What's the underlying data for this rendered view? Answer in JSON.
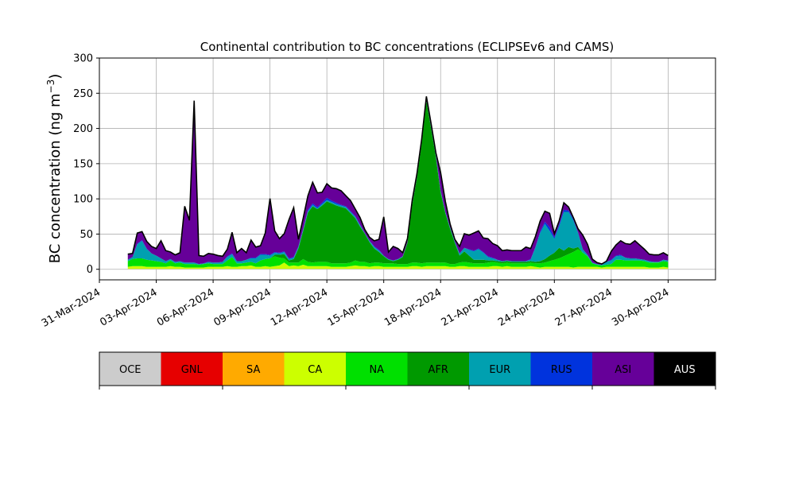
{
  "chart_data": {
    "type": "area",
    "stacked": true,
    "title": "Continental contribution to BC concentrations (ECLIPSEv6 and CAMS)",
    "ylabel_main": "BC concentration (ng m",
    "ylabel_exp": "−3",
    "ylabel_close": ")",
    "ylim": [
      -15,
      300
    ],
    "yticks": [
      0,
      50,
      100,
      150,
      200,
      250,
      300
    ],
    "x_is_date": true,
    "xlim": [
      "2024-03-31T00:00",
      "2024-05-02T12:00"
    ],
    "xticks": [
      "31-Mar-2024",
      "03-Apr-2024",
      "06-Apr-2024",
      "09-Apr-2024",
      "12-Apr-2024",
      "15-Apr-2024",
      "18-Apr-2024",
      "21-Apr-2024",
      "24-Apr-2024",
      "27-Apr-2024",
      "30-Apr-2024"
    ],
    "grid": true,
    "legend_position": "colorbar below",
    "series": [
      {
        "name": "OCE",
        "color": "#cccccc",
        "values": [
          0.5,
          0.5,
          0.5,
          0.5,
          0.5,
          0.5,
          0.5,
          0.5,
          0.5,
          0.5,
          0.5,
          0.5,
          0.5,
          0.5,
          0.5,
          0.5,
          0.5,
          0.5,
          0.5,
          0.5,
          0.5,
          0.5,
          0.5,
          0.5,
          0.5,
          0.5,
          0.5,
          0.5,
          0.5,
          0.5,
          0.5,
          0.5,
          0.5,
          0.5,
          0.5,
          0.5,
          0.5,
          0.5,
          0.5,
          0.5,
          0.5,
          0.5,
          0.5,
          0.5,
          0.5,
          0.5,
          0.5,
          0.5,
          0.5,
          0.5,
          0.5,
          0.5,
          0.5,
          0.5,
          0.5,
          0.5,
          0.5,
          0.5,
          0.5,
          0.5,
          0.5,
          0.5,
          0.5,
          0.5,
          0.5,
          0.5,
          0.5,
          0.5,
          0.5,
          0.5,
          0.5,
          0.5,
          0.5,
          0.5,
          0.5,
          0.5,
          0.5,
          0.5,
          0.5,
          0.5,
          0.5,
          0.5,
          0.5,
          0.5,
          0.5,
          0.5,
          0.5,
          0.5,
          0.5,
          0.5,
          0.5,
          0.5,
          0.5,
          0.5,
          0.5,
          0.5,
          0.5,
          0.5,
          0.5,
          0.5,
          0.5,
          0.5,
          0.5,
          0.5,
          0.5,
          0.5,
          0.5,
          0.5,
          0.5,
          0.5,
          0.5,
          0.5,
          0.5,
          0.5,
          0.5
        ]
      },
      {
        "name": "GNL",
        "color": "#e60000",
        "values": [
          0,
          0,
          0,
          0,
          0,
          0,
          0,
          0,
          0,
          0,
          0,
          0,
          0,
          0,
          0,
          0,
          0,
          0,
          0,
          0,
          0,
          0,
          0,
          0,
          0,
          0,
          0,
          0,
          0,
          0,
          0,
          0,
          0,
          0,
          0,
          0,
          0,
          0,
          0,
          0,
          0,
          0,
          0,
          0,
          0,
          0,
          0,
          0,
          0,
          0,
          0,
          0,
          0,
          0,
          0,
          0,
          0,
          0,
          0,
          0,
          0,
          0,
          0,
          0,
          0,
          0,
          0,
          0,
          0,
          0,
          0,
          0,
          0,
          0,
          0,
          0,
          0,
          0,
          0,
          0,
          0,
          0,
          0,
          0,
          0,
          0,
          0,
          0,
          0,
          0,
          0,
          0,
          0,
          0,
          0,
          0,
          0,
          0,
          0,
          0,
          0,
          0,
          0,
          0,
          0,
          0,
          0,
          0,
          0,
          0,
          0,
          0,
          0,
          0,
          0
        ]
      },
      {
        "name": "SA",
        "color": "#ffaa00",
        "values": [
          0,
          0,
          0,
          0,
          0,
          0,
          0,
          0,
          0,
          0,
          0,
          0,
          0,
          0,
          0,
          0,
          0,
          0,
          0,
          0,
          0,
          0,
          0,
          0,
          0,
          0,
          0,
          0,
          0,
          0,
          0,
          0,
          0,
          0,
          0,
          0,
          0,
          0,
          0,
          0,
          0,
          0,
          0,
          0,
          0,
          0,
          0,
          0,
          0,
          0,
          0,
          0,
          0,
          0,
          0,
          0,
          0,
          0,
          0,
          0,
          0,
          0,
          0,
          0,
          0,
          0,
          0,
          0,
          0,
          0,
          0,
          0,
          0,
          0,
          0,
          0,
          0,
          0,
          0,
          0,
          0,
          0,
          0,
          0,
          0,
          0,
          0,
          0,
          0,
          0,
          0,
          0,
          0,
          0,
          0,
          0,
          0,
          0,
          0,
          0,
          0,
          0,
          0,
          0,
          0,
          0,
          0,
          0,
          0,
          0,
          0,
          0,
          0,
          0,
          0
        ]
      },
      {
        "name": "CA",
        "color": "#ccff00",
        "values": [
          3,
          4,
          4,
          4,
          3,
          3,
          3,
          3,
          3,
          4,
          3,
          3,
          2,
          2,
          2,
          2,
          2,
          3,
          3,
          3,
          3,
          4,
          3,
          3,
          4,
          4,
          5,
          3,
          3,
          4,
          3,
          4,
          5,
          9,
          4,
          5,
          4,
          6,
          4,
          4,
          4,
          4,
          4,
          3,
          3,
          3,
          3,
          4,
          5,
          4,
          4,
          3,
          4,
          4,
          3,
          3,
          3,
          3,
          3,
          3,
          4,
          4,
          3,
          4,
          4,
          4,
          4,
          4,
          3,
          3,
          4,
          4,
          3,
          3,
          3,
          3,
          3,
          4,
          4,
          3,
          4,
          3,
          3,
          3,
          3,
          4,
          3,
          2,
          3,
          3,
          3,
          3,
          3,
          3,
          2,
          3,
          3,
          3,
          3,
          3,
          2,
          3,
          3,
          3,
          3,
          3,
          3,
          3,
          3,
          3,
          2,
          2,
          2,
          3,
          2
        ]
      },
      {
        "name": "NA",
        "color": "#00e000",
        "values": [
          8,
          10,
          11,
          11,
          10,
          9,
          8,
          7,
          5,
          8,
          5,
          6,
          5,
          5,
          5,
          4,
          5,
          5,
          4,
          4,
          4,
          8,
          14,
          5,
          4,
          5,
          5,
          5,
          9,
          10,
          12,
          14,
          11,
          6,
          5,
          4,
          5,
          8,
          6,
          5,
          6,
          6,
          6,
          5,
          5,
          5,
          5,
          5,
          7,
          6,
          6,
          5,
          5,
          5,
          5,
          5,
          5,
          4,
          4,
          4,
          5,
          5,
          5,
          5,
          5,
          5,
          5,
          5,
          4,
          4,
          5,
          6,
          6,
          5,
          5,
          5,
          6,
          6,
          5,
          5,
          5,
          5,
          5,
          5,
          5,
          5,
          5,
          6,
          6,
          8,
          10,
          12,
          15,
          18,
          22,
          25,
          20,
          15,
          5,
          3,
          3,
          3,
          4,
          10,
          10,
          9,
          9,
          9,
          9,
          8,
          7,
          7,
          7,
          8,
          8
        ]
      },
      {
        "name": "AFR",
        "color": "#009900",
        "values": [
          0,
          0,
          0,
          0,
          0,
          0,
          0,
          0,
          0,
          0,
          0,
          0,
          0,
          0,
          0,
          0,
          0,
          0,
          0,
          0,
          0,
          0,
          0,
          0,
          0,
          0,
          0,
          0,
          0,
          0,
          0,
          2,
          4,
          6,
          3,
          5,
          20,
          40,
          70,
          80,
          75,
          80,
          86,
          85,
          82,
          80,
          78,
          70,
          60,
          50,
          40,
          30,
          20,
          15,
          10,
          5,
          3,
          6,
          10,
          30,
          82,
          120,
          170,
          230,
          190,
          150,
          100,
          70,
          50,
          30,
          10,
          15,
          10,
          5,
          5,
          5,
          3,
          2,
          2,
          2,
          2,
          2,
          2,
          2,
          2,
          2,
          2,
          3,
          5,
          8,
          10,
          15,
          8,
          10,
          5,
          3,
          0,
          0,
          0,
          0,
          0,
          0,
          0,
          0,
          0,
          0,
          0,
          0,
          0,
          0,
          0,
          0,
          0,
          0,
          0
        ]
      },
      {
        "name": "EUR",
        "color": "#00a0b0",
        "values": [
          2,
          3,
          20,
          25,
          15,
          10,
          8,
          5,
          3,
          2,
          2,
          2,
          2,
          2,
          2,
          1,
          1,
          2,
          2,
          2,
          3,
          5,
          4,
          3,
          3,
          4,
          5,
          7,
          8,
          6,
          4,
          3,
          2,
          3,
          2,
          2,
          2,
          2,
          2,
          2,
          1,
          2,
          2,
          2,
          2,
          2,
          2,
          2,
          2,
          2,
          1,
          2,
          2,
          2,
          1,
          1,
          1,
          1,
          1,
          1,
          1,
          1,
          1,
          1,
          1,
          2,
          2,
          2,
          2,
          2,
          3,
          5,
          8,
          12,
          15,
          10,
          5,
          3,
          2,
          1,
          1,
          1,
          1,
          1,
          1,
          2,
          20,
          40,
          50,
          35,
          20,
          30,
          55,
          50,
          40,
          20,
          5,
          2,
          1,
          1,
          1,
          4,
          5,
          5,
          6,
          4,
          3,
          3,
          2,
          2,
          2,
          1,
          1,
          2,
          2
        ]
      },
      {
        "name": "RUS",
        "color": "#0033dd",
        "values": [
          0,
          0,
          1,
          1,
          1,
          0,
          0,
          0,
          0,
          0,
          0,
          0,
          0,
          0,
          0,
          0,
          0,
          0,
          0,
          0,
          0,
          1,
          1,
          0,
          0,
          0,
          1,
          1,
          1,
          1,
          1,
          1,
          1,
          1,
          1,
          1,
          1,
          1,
          2,
          2,
          2,
          2,
          3,
          2,
          2,
          1,
          1,
          1,
          1,
          1,
          0,
          0,
          1,
          1,
          0,
          0,
          0,
          0,
          0,
          0,
          0,
          0,
          0,
          0,
          1,
          1,
          1,
          0,
          0,
          0,
          0,
          0,
          1,
          1,
          1,
          1,
          1,
          1,
          0,
          0,
          0,
          0,
          0,
          0,
          0,
          1,
          1,
          2,
          3,
          5,
          2,
          3,
          3,
          2,
          2,
          1,
          0,
          0,
          0,
          0,
          0,
          0,
          1,
          1,
          1,
          0,
          0,
          0,
          0,
          0,
          0,
          0,
          0,
          0,
          0
        ]
      },
      {
        "name": "ASI",
        "color": "#660099",
        "values": [
          8,
          5,
          15,
          12,
          10,
          10,
          10,
          25,
          15,
          10,
          10,
          12,
          80,
          60,
          230,
          12,
          10,
          12,
          12,
          10,
          8,
          10,
          30,
          12,
          18,
          10,
          25,
          15,
          12,
          30,
          80,
          30,
          20,
          25,
          55,
          70,
          10,
          15,
          20,
          30,
          20,
          15,
          20,
          18,
          20,
          20,
          15,
          15,
          10,
          10,
          5,
          5,
          8,
          15,
          55,
          10,
          20,
          15,
          5,
          5,
          5,
          5,
          5,
          5,
          5,
          3,
          25,
          15,
          5,
          3,
          10,
          20,
          20,
          25,
          25,
          20,
          25,
          20,
          20,
          15,
          15,
          15,
          15,
          15,
          20,
          15,
          15,
          15,
          15,
          20,
          5,
          5,
          10,
          5,
          2,
          5,
          20,
          15,
          5,
          2,
          1,
          1,
          12,
          15,
          20,
          20,
          20,
          25,
          20,
          15,
          10,
          10,
          10,
          10,
          7
        ]
      },
      {
        "name": "AUS",
        "color": "#000000",
        "values": [
          0,
          0,
          0,
          0,
          0,
          0,
          0,
          0,
          0,
          0,
          0,
          0,
          0,
          0,
          0,
          0,
          0,
          0,
          0,
          0,
          0,
          0,
          0,
          0,
          0,
          0,
          0,
          0,
          0,
          0,
          0,
          0,
          0,
          0,
          0,
          0,
          0,
          0,
          0,
          0,
          0,
          0,
          0,
          0,
          0,
          0,
          0,
          0,
          0,
          0,
          0,
          0,
          0,
          0,
          0,
          0,
          0,
          0,
          0,
          0,
          0,
          0,
          0,
          0,
          0,
          0,
          0,
          0,
          0,
          0,
          0,
          0,
          0,
          0,
          0,
          0,
          0,
          0,
          0,
          0,
          0,
          0,
          0,
          0,
          0,
          0,
          0,
          0,
          0,
          0,
          0,
          0,
          0,
          0,
          0,
          0,
          0,
          0,
          0,
          0,
          0,
          0,
          0,
          0,
          0,
          0,
          0,
          0,
          0,
          0,
          0,
          0,
          0,
          0,
          0
        ]
      }
    ],
    "x_start": "2024-04-01T12:00",
    "x_step_hours": 6
  },
  "legend": {
    "items": [
      {
        "label": "OCE",
        "color": "#cccccc",
        "text_color": "#000000"
      },
      {
        "label": "GNL",
        "color": "#e60000",
        "text_color": "#000000"
      },
      {
        "label": "SA",
        "color": "#ffaa00",
        "text_color": "#000000"
      },
      {
        "label": "CA",
        "color": "#ccff00",
        "text_color": "#000000"
      },
      {
        "label": "NA",
        "color": "#00e000",
        "text_color": "#000000"
      },
      {
        "label": "AFR",
        "color": "#009900",
        "text_color": "#000000"
      },
      {
        "label": "EUR",
        "color": "#00a0b0",
        "text_color": "#000000"
      },
      {
        "label": "RUS",
        "color": "#0033dd",
        "text_color": "#000000"
      },
      {
        "label": "ASI",
        "color": "#660099",
        "text_color": "#000000"
      },
      {
        "label": "AUS",
        "color": "#000000",
        "text_color": "#ffffff"
      }
    ]
  }
}
